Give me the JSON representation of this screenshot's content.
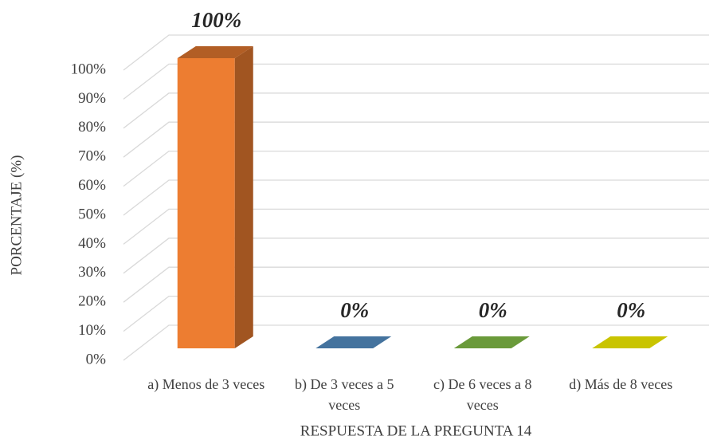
{
  "chart_data": {
    "type": "bar3d",
    "x_label": "RESPUESTA DE LA PREGUNTA 14",
    "y_label": "PORCENTAJE (%)",
    "categories": [
      "a) Menos de 3 veces",
      "b) De 3 veces a 5 veces",
      "c) De 6 veces a 8 veces",
      "d) Más de 8 veces"
    ],
    "values": [
      100,
      0,
      0,
      0
    ],
    "value_labels": [
      "100%",
      "0%",
      "0%",
      "0%"
    ],
    "colors": [
      "#ed7d31",
      "#44739e",
      "#6a9a3a",
      "#c9c400"
    ],
    "ylim": [
      0,
      100
    ],
    "yticks": [
      {
        "value": 0,
        "label": "0%"
      },
      {
        "value": 10,
        "label": "10%"
      },
      {
        "value": 20,
        "label": "20%"
      },
      {
        "value": 30,
        "label": "30%"
      },
      {
        "value": 40,
        "label": "40%"
      },
      {
        "value": 50,
        "label": "50%"
      },
      {
        "value": 60,
        "label": "60%"
      },
      {
        "value": 70,
        "label": "70%"
      },
      {
        "value": 80,
        "label": "80%"
      },
      {
        "value": 90,
        "label": "90%"
      },
      {
        "value": 100,
        "label": "100%"
      }
    ],
    "grid": true
  }
}
